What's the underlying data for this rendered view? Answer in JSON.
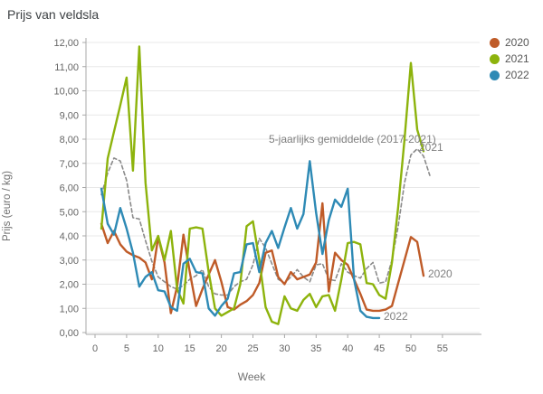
{
  "title": "Prijs van veldsla",
  "legend": {
    "items": [
      {
        "label": "2020",
        "color": "#bf5b28"
      },
      {
        "label": "2021",
        "color": "#8db30c"
      },
      {
        "label": "2022",
        "color": "#2e8ab5"
      }
    ]
  },
  "annotation": "5-jaarlijks gemiddelde (2017-2021)",
  "series_end_labels": {
    "y2021": "2021",
    "y2020": "2020",
    "y2022": "2022"
  },
  "chart_data": {
    "type": "line",
    "title": "Prijs van veldsla",
    "xlabel": "Week",
    "ylabel": "Prijs (euro / kg)",
    "xlim": [
      0,
      61
    ],
    "ylim": [
      0,
      12
    ],
    "grid": "horizontal",
    "legend_position": "top-right",
    "x_ticks": [
      {
        "v": 0,
        "label": "0"
      },
      {
        "v": 5,
        "label": "5"
      },
      {
        "v": 10,
        "label": "10"
      },
      {
        "v": 15,
        "label": "15"
      },
      {
        "v": 20,
        "label": "20"
      },
      {
        "v": 25,
        "label": "25"
      },
      {
        "v": 30,
        "label": "30"
      },
      {
        "v": 35,
        "label": "35"
      },
      {
        "v": 40,
        "label": "40"
      },
      {
        "v": 45,
        "label": "45"
      },
      {
        "v": 50,
        "label": "50"
      },
      {
        "v": 55,
        "label": "55"
      }
    ],
    "y_ticks": [
      {
        "v": 12,
        "label": "12,00"
      },
      {
        "v": 11,
        "label": "11,00"
      },
      {
        "v": 10,
        "label": "10,00"
      },
      {
        "v": 9,
        "label": "9,00"
      },
      {
        "v": 8,
        "label": "8,00"
      },
      {
        "v": 7,
        "label": "7,00"
      },
      {
        "v": 6,
        "label": "6,00"
      },
      {
        "v": 5,
        "label": "5,00"
      },
      {
        "v": 4,
        "label": "4,00"
      },
      {
        "v": 3,
        "label": "3,00"
      },
      {
        "v": 2,
        "label": "2,00"
      },
      {
        "v": 1,
        "label": "1,00"
      },
      {
        "v": 0,
        "label": "0,00"
      }
    ],
    "series": [
      {
        "name": "5-jaarlijks gemiddelde (2017-2021)",
        "color": "#8a8a8a",
        "style": "dashed",
        "start_week": 1,
        "values": [
          5.7,
          6.6,
          7.22,
          7.1,
          6.3,
          4.75,
          4.7,
          3.8,
          2.95,
          2.3,
          2.1,
          1.9,
          1.8,
          1.95,
          2.2,
          2.35,
          2.6,
          1.9,
          1.6,
          1.55,
          1.55,
          1.9,
          2.1,
          2.2,
          2.8,
          3.9,
          3.5,
          2.85,
          2.2,
          2.05,
          2.3,
          2.6,
          2.3,
          2.1,
          2.8,
          2.85,
          2.2,
          2.15,
          2.85,
          2.5,
          2.35,
          2.25,
          2.65,
          2.9,
          2.05,
          2.1,
          3.0,
          4.4,
          6.2,
          7.35,
          7.6,
          7.3,
          6.5
        ]
      },
      {
        "name": "2020",
        "color": "#bf5b28",
        "style": "solid",
        "start_week": 1,
        "values": [
          4.5,
          3.7,
          4.2,
          3.65,
          3.35,
          3.2,
          3.1,
          2.9,
          2.2,
          3.95,
          2.9,
          0.8,
          1.9,
          4.05,
          2.5,
          1.1,
          1.8,
          2.4,
          3.0,
          2.1,
          1.05,
          0.95,
          1.15,
          1.3,
          1.55,
          2.05,
          3.3,
          3.4,
          2.3,
          2.0,
          2.5,
          2.2,
          2.3,
          2.4,
          2.9,
          5.35,
          1.7,
          3.3,
          3.0,
          2.8,
          2.2,
          1.6,
          0.95,
          0.9,
          0.9,
          0.95,
          1.1,
          2.05,
          3.0,
          3.95,
          3.75,
          2.35
        ]
      },
      {
        "name": "2021",
        "color": "#8db30c",
        "style": "solid",
        "start_week": 1,
        "values": [
          4.3,
          7.2,
          8.3,
          9.4,
          10.55,
          6.7,
          11.83,
          6.2,
          3.4,
          4.0,
          3.0,
          4.2,
          1.8,
          1.2,
          4.3,
          4.35,
          4.3,
          2.5,
          1.0,
          0.7,
          0.85,
          1.0,
          2.0,
          4.4,
          4.6,
          3.0,
          1.05,
          0.45,
          0.35,
          1.5,
          1.0,
          0.9,
          1.35,
          1.6,
          1.05,
          1.5,
          1.55,
          0.9,
          2.2,
          3.7,
          3.75,
          3.65,
          2.05,
          2.0,
          1.55,
          1.4,
          2.9,
          5.2,
          8.0,
          11.15,
          8.4,
          7.5
        ]
      },
      {
        "name": "2022",
        "color": "#2e8ab5",
        "style": "solid",
        "start_week": 1,
        "values": [
          5.95,
          4.5,
          4.05,
          5.15,
          4.3,
          3.3,
          1.9,
          2.3,
          2.5,
          1.75,
          1.7,
          1.05,
          0.9,
          2.85,
          3.05,
          2.5,
          2.45,
          1.0,
          0.7,
          1.1,
          1.4,
          2.45,
          2.5,
          3.65,
          3.7,
          2.5,
          3.7,
          4.2,
          3.5,
          4.35,
          5.15,
          4.3,
          4.9,
          7.09,
          4.95,
          3.25,
          4.65,
          5.5,
          5.2,
          5.95,
          2.2,
          0.9,
          0.65,
          0.6,
          0.6
        ]
      }
    ]
  }
}
